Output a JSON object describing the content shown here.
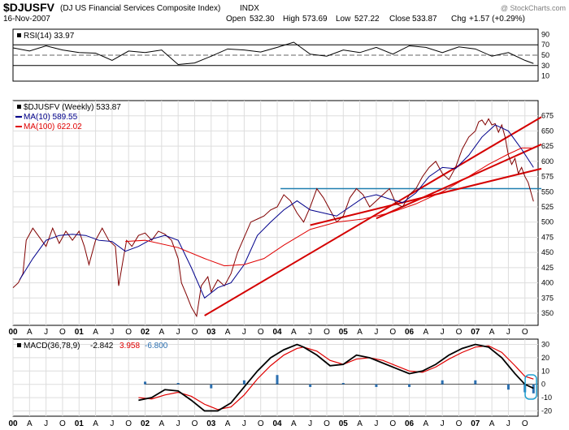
{
  "header": {
    "symbol": "$DJUSFV",
    "name": "(DJ US Financial Services Composite Index)",
    "exchange": "INDX",
    "date": "16-Nov-2007",
    "open_label": "Open",
    "open": "532.30",
    "high_label": "High",
    "high": "573.69",
    "low_label": "Low",
    "low": "527.22",
    "close_label": "Close",
    "close": "533.87",
    "chg_label": "Chg",
    "chg": "+1.57 (+0.29%)",
    "watermark": "@ StockCharts.com"
  },
  "rsi_legend": "RSI(14) 33.97",
  "price_legend": {
    "main": "$DJUSFV (Weekly) 533.87",
    "ma10": "MA(10) 589.55",
    "ma100": "MA(100) 622.02"
  },
  "macd_legend": {
    "label": "MACD(36,78,9)",
    "v1": "-2.842",
    "v2": "3.958",
    "v3": "-6.800"
  },
  "colors": {
    "price": "#800000",
    "ma10": "#00008b",
    "ma100": "#e00000",
    "trend": "#d40000",
    "support": "#1f7fb0",
    "hist": "#2b6fb0",
    "macd": "#000000",
    "signal": "#e00000",
    "grid": "#dddddd"
  },
  "chart_data": [
    {
      "type": "line",
      "panel": "rsi",
      "title": "RSI(14)",
      "ylim": [
        0,
        100
      ],
      "yticks": [
        "90",
        "70",
        "50",
        "30",
        "10"
      ],
      "reference_lines": [
        70,
        50,
        30
      ],
      "x": [
        2000.0,
        2000.25,
        2000.5,
        2000.75,
        2001.0,
        2001.25,
        2001.5,
        2001.75,
        2002.0,
        2002.25,
        2002.5,
        2002.75,
        2003.0,
        2003.25,
        2003.5,
        2003.75,
        2004.0,
        2004.25,
        2004.5,
        2004.75,
        2005.0,
        2005.25,
        2005.5,
        2005.75,
        2006.0,
        2006.25,
        2006.5,
        2006.75,
        2007.0,
        2007.25,
        2007.5,
        2007.75,
        2007.88
      ],
      "values": [
        64,
        58,
        68,
        60,
        55,
        54,
        40,
        58,
        55,
        60,
        32,
        35,
        48,
        62,
        60,
        56,
        65,
        75,
        52,
        48,
        60,
        55,
        65,
        52,
        68,
        65,
        55,
        66,
        62,
        48,
        55,
        40,
        34
      ]
    },
    {
      "type": "line",
      "panel": "price",
      "title": "$DJUSFV (Weekly)",
      "xlabel": "",
      "ylabel": "",
      "ylim": [
        330,
        700
      ],
      "yticks": [
        "675",
        "650",
        "625",
        "600",
        "575",
        "550",
        "525",
        "500",
        "475",
        "450",
        "425",
        "400",
        "375",
        "350"
      ],
      "xticks": [
        "00",
        "A",
        "J",
        "O",
        "01",
        "A",
        "J",
        "O",
        "02",
        "A",
        "J",
        "O",
        "03",
        "A",
        "J",
        "O",
        "04",
        "A",
        "J",
        "O",
        "05",
        "A",
        "J",
        "O",
        "06",
        "A",
        "J",
        "O",
        "07",
        "A",
        "J",
        "O"
      ],
      "series": [
        {
          "name": "$DJUSFV",
          "x": [
            2000.0,
            2000.08,
            2000.15,
            2000.2,
            2000.3,
            2000.4,
            2000.5,
            2000.6,
            2000.7,
            2000.8,
            2000.9,
            2001.0,
            2001.08,
            2001.15,
            2001.25,
            2001.35,
            2001.45,
            2001.55,
            2001.6,
            2001.67,
            2001.72,
            2001.8,
            2001.9,
            2002.0,
            2002.1,
            2002.2,
            2002.3,
            2002.4,
            2002.5,
            2002.55,
            2002.62,
            2002.7,
            2002.78,
            2002.85,
            2002.95,
            2003.0,
            2003.1,
            2003.2,
            2003.3,
            2003.4,
            2003.5,
            2003.6,
            2003.7,
            2003.8,
            2003.9,
            2004.0,
            2004.1,
            2004.2,
            2004.3,
            2004.4,
            2004.5,
            2004.6,
            2004.7,
            2004.8,
            2004.9,
            2005.0,
            2005.1,
            2005.2,
            2005.3,
            2005.4,
            2005.5,
            2005.6,
            2005.7,
            2005.8,
            2005.9,
            2006.0,
            2006.1,
            2006.2,
            2006.3,
            2006.4,
            2006.5,
            2006.6,
            2006.7,
            2006.8,
            2006.9,
            2007.0,
            2007.05,
            2007.1,
            2007.15,
            2007.2,
            2007.25,
            2007.3,
            2007.35,
            2007.4,
            2007.45,
            2007.5,
            2007.55,
            2007.6,
            2007.65,
            2007.7,
            2007.75,
            2007.8,
            2007.88
          ],
          "values": [
            392,
            400,
            415,
            470,
            490,
            475,
            460,
            490,
            465,
            485,
            470,
            485,
            460,
            430,
            470,
            490,
            470,
            460,
            395,
            440,
            470,
            460,
            478,
            482,
            470,
            485,
            480,
            470,
            440,
            400,
            382,
            360,
            345,
            395,
            410,
            385,
            405,
            395,
            415,
            450,
            475,
            500,
            505,
            510,
            520,
            525,
            545,
            535,
            515,
            500,
            525,
            555,
            540,
            520,
            500,
            510,
            540,
            555,
            545,
            525,
            535,
            545,
            555,
            530,
            525,
            545,
            555,
            575,
            590,
            600,
            580,
            570,
            590,
            620,
            640,
            650,
            665,
            668,
            660,
            670,
            660,
            662,
            648,
            660,
            640,
            610,
            595,
            605,
            580,
            590,
            575,
            565,
            534
          ]
        },
        {
          "name": "MA(10)",
          "x": [
            2000.1,
            2000.3,
            2000.5,
            2000.7,
            2000.9,
            2001.1,
            2001.3,
            2001.5,
            2001.7,
            2001.9,
            2002.1,
            2002.3,
            2002.5,
            2002.7,
            2002.9,
            2003.1,
            2003.3,
            2003.5,
            2003.7,
            2003.9,
            2004.1,
            2004.3,
            2004.5,
            2004.7,
            2004.9,
            2005.1,
            2005.3,
            2005.5,
            2005.7,
            2005.9,
            2006.1,
            2006.3,
            2006.5,
            2006.7,
            2006.9,
            2007.1,
            2007.3,
            2007.5,
            2007.7,
            2007.88
          ],
          "values": [
            405,
            440,
            470,
            478,
            480,
            478,
            470,
            468,
            452,
            460,
            472,
            478,
            470,
            425,
            375,
            392,
            400,
            430,
            478,
            500,
            520,
            535,
            520,
            515,
            510,
            525,
            540,
            545,
            538,
            532,
            548,
            575,
            590,
            588,
            610,
            640,
            660,
            650,
            620,
            590
          ]
        },
        {
          "name": "MA(100)",
          "x": [
            2001.7,
            2002.0,
            2002.5,
            2002.9,
            2003.2,
            2003.5,
            2003.8,
            2004.1,
            2004.5,
            2004.9,
            2005.3,
            2005.7,
            2006.1,
            2006.5,
            2006.9,
            2007.2,
            2007.5,
            2007.7,
            2007.88
          ],
          "values": [
            468,
            470,
            458,
            440,
            428,
            430,
            440,
            462,
            488,
            500,
            505,
            515,
            530,
            550,
            575,
            595,
            612,
            622,
            622
          ]
        }
      ],
      "trendlines": [
        {
          "name": "long-term trendline",
          "x": [
            2002.9,
            2008.0
          ],
          "values": [
            346,
            673
          ]
        },
        {
          "name": "upper trendline",
          "x": [
            2005.5,
            2008.0
          ],
          "values": [
            506,
            628
          ]
        },
        {
          "name": "lower trendline",
          "x": [
            2004.5,
            2008.0
          ],
          "values": [
            495,
            588
          ]
        }
      ],
      "support_line": {
        "x": [
          2004.05,
          2008.0
        ],
        "value": 555
      },
      "legend": [
        "$DJUSFV (Weekly) 533.87",
        "MA(10) 589.55",
        "MA(100) 622.02"
      ]
    },
    {
      "type": "line",
      "panel": "macd",
      "title": "MACD(36,78,9)",
      "ylim": [
        -24,
        34
      ],
      "yticks": [
        "30",
        "20",
        "10",
        "0",
        "-10",
        "-20"
      ],
      "xticks": [
        "00",
        "A",
        "J",
        "O",
        "01",
        "A",
        "J",
        "O",
        "02",
        "A",
        "J",
        "O",
        "03",
        "A",
        "J",
        "O",
        "04",
        "A",
        "J",
        "O",
        "05",
        "A",
        "J",
        "O",
        "06",
        "A",
        "J",
        "O",
        "07",
        "A",
        "J",
        "O"
      ],
      "series": [
        {
          "name": "MACD",
          "x": [
            2001.9,
            2002.1,
            2002.3,
            2002.5,
            2002.7,
            2002.9,
            2003.1,
            2003.3,
            2003.5,
            2003.7,
            2003.9,
            2004.1,
            2004.3,
            2004.4,
            2004.6,
            2004.8,
            2005.0,
            2005.2,
            2005.4,
            2005.6,
            2005.8,
            2006.0,
            2006.2,
            2006.4,
            2006.6,
            2006.8,
            2007.0,
            2007.2,
            2007.4,
            2007.6,
            2007.75,
            2007.88
          ],
          "values": [
            -12,
            -10,
            -4,
            -5,
            -12,
            -20,
            -20,
            -14,
            -2,
            10,
            20,
            26,
            30,
            28,
            22,
            14,
            15,
            22,
            20,
            16,
            12,
            8,
            10,
            15,
            22,
            27,
            30,
            28,
            20,
            8,
            0,
            -3
          ]
        },
        {
          "name": "Signal",
          "x": [
            2001.9,
            2002.1,
            2002.3,
            2002.5,
            2002.7,
            2002.9,
            2003.1,
            2003.3,
            2003.5,
            2003.7,
            2003.9,
            2004.1,
            2004.3,
            2004.4,
            2004.6,
            2004.8,
            2005.0,
            2005.2,
            2005.4,
            2005.6,
            2005.8,
            2006.0,
            2006.2,
            2006.4,
            2006.6,
            2006.8,
            2007.0,
            2007.2,
            2007.4,
            2007.6,
            2007.75,
            2007.88
          ],
          "values": [
            -10,
            -11,
            -8,
            -6,
            -9,
            -15,
            -19,
            -17,
            -8,
            4,
            14,
            22,
            27,
            28,
            25,
            18,
            15,
            19,
            20,
            18,
            14,
            10,
            9,
            13,
            19,
            24,
            28,
            29,
            24,
            14,
            6,
            4
          ]
        },
        {
          "name": "Histogram",
          "x": [
            2002.0,
            2002.5,
            2003.0,
            2003.5,
            2004.0,
            2004.5,
            2005.0,
            2005.5,
            2006.0,
            2006.5,
            2007.0,
            2007.5,
            2007.75,
            2007.88
          ],
          "values": [
            2,
            1,
            -3,
            3,
            7,
            -2,
            1,
            -2,
            -2,
            3,
            3,
            -4,
            -6,
            -6.8
          ]
        }
      ],
      "legend": [
        "MACD(36,78,9) -2.842",
        "3.958",
        "-6.800"
      ]
    }
  ]
}
